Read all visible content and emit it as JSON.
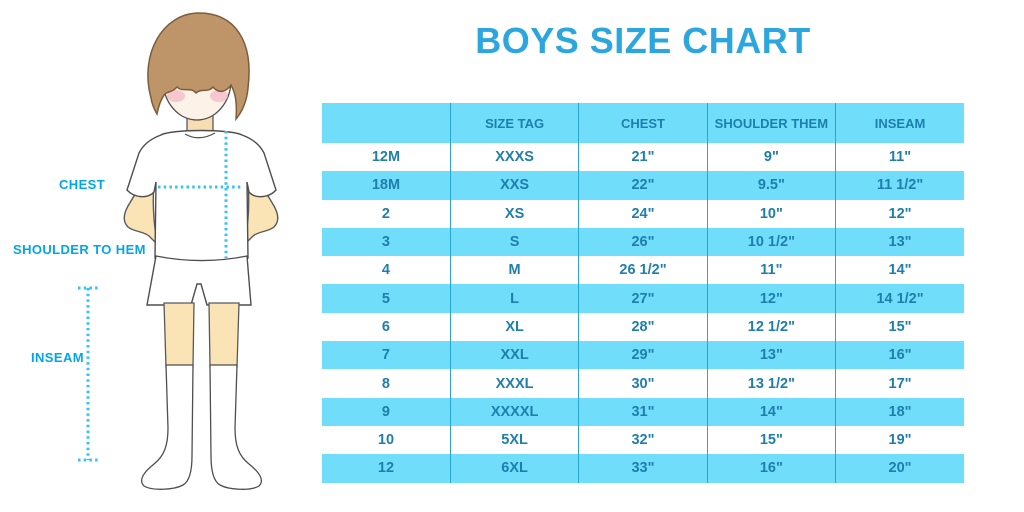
{
  "title": "BOYS SIZE CHART",
  "figure_labels": {
    "chest": "CHEST",
    "shoulder_to_hem": "SHOULDER TO HEM",
    "inseam": "INSEAM"
  },
  "chart_data": {
    "type": "table",
    "title": "BOYS SIZE CHART",
    "columns": [
      "",
      "SIZE TAG",
      "CHEST",
      "SHOULDER THEM",
      "INSEAM"
    ],
    "rows": [
      [
        "12M",
        "XXXS",
        "21\"",
        "9\"",
        "11\""
      ],
      [
        "18M",
        "XXS",
        "22\"",
        "9.5\"",
        "11 1/2\""
      ],
      [
        "2",
        "XS",
        "24\"",
        "10\"",
        "12\""
      ],
      [
        "3",
        "S",
        "26\"",
        "10 1/2\"",
        "13\""
      ],
      [
        "4",
        "M",
        "26 1/2\"",
        "11\"",
        "14\""
      ],
      [
        "5",
        "L",
        "27\"",
        "12\"",
        "14 1/2\""
      ],
      [
        "6",
        "XL",
        "28\"",
        "12 1/2\"",
        "15\""
      ],
      [
        "7",
        "XXL",
        "29\"",
        "13\"",
        "16\""
      ],
      [
        "8",
        "XXXL",
        "30\"",
        "13 1/2\"",
        "17\""
      ],
      [
        "9",
        "XXXXL",
        "31\"",
        "14\"",
        "18\""
      ],
      [
        "10",
        "5XL",
        "32\"",
        "15\"",
        "19\""
      ],
      [
        "12",
        "6XL",
        "33\"",
        "16\"",
        "20\""
      ]
    ],
    "layout": {
      "header_background": "#70DEFB",
      "row_stripe_colors": [
        "#FFFFFF",
        "#70DEFB"
      ],
      "grid_lines": "vertical-only"
    }
  },
  "colors": {
    "title_text": "#2BA6DE",
    "table_text": "#1E7EAC",
    "stripe": "#70DEFB",
    "grid_line": "#2BA4CF",
    "figure_label_text": "#00A7E8",
    "measure_line": "#35C3F0"
  }
}
